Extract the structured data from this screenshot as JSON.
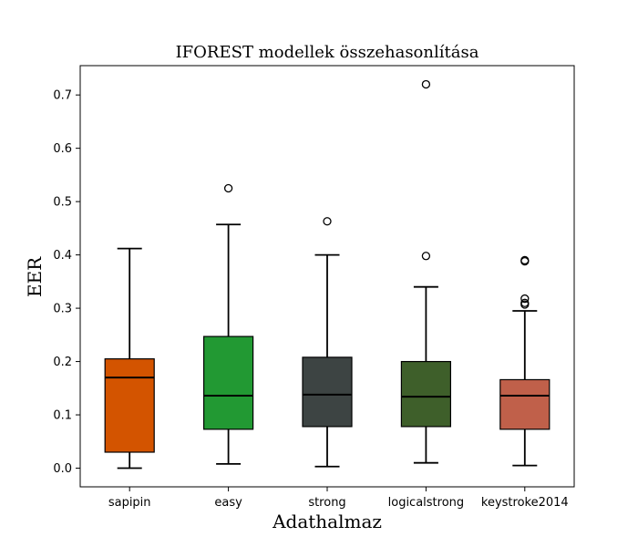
{
  "chart_data": {
    "type": "box",
    "title": "IFOREST modellek összehasonlítása",
    "xlabel": "Adathalmaz",
    "ylabel": "EER",
    "ylim": [
      -0.035,
      0.755
    ],
    "yticks": [
      0.0,
      0.1,
      0.2,
      0.3,
      0.4,
      0.5,
      0.6,
      0.7
    ],
    "ytick_labels": [
      "0.0",
      "0.1",
      "0.2",
      "0.3",
      "0.4",
      "0.5",
      "0.6",
      "0.7"
    ],
    "grid": false,
    "categories": [
      "sapipin",
      "easy",
      "strong",
      "logicalstrong",
      "keystroke2014"
    ],
    "boxes": [
      {
        "whislo": 0.0,
        "q1": 0.03,
        "med": 0.17,
        "q3": 0.205,
        "whishi": 0.412,
        "fliers": [],
        "color": "#d35400"
      },
      {
        "whislo": 0.008,
        "q1": 0.073,
        "med": 0.136,
        "q3": 0.247,
        "whishi": 0.457,
        "fliers": [
          0.525
        ],
        "color": "#229933"
      },
      {
        "whislo": 0.003,
        "q1": 0.078,
        "med": 0.138,
        "q3": 0.208,
        "whishi": 0.4,
        "fliers": [
          0.463
        ],
        "color": "#3d4443"
      },
      {
        "whislo": 0.01,
        "q1": 0.078,
        "med": 0.134,
        "q3": 0.2,
        "whishi": 0.34,
        "fliers": [
          0.398,
          0.72
        ],
        "color": "#3e5f2a"
      },
      {
        "whislo": 0.005,
        "q1": 0.073,
        "med": 0.136,
        "q3": 0.166,
        "whishi": 0.295,
        "fliers": [
          0.307,
          0.31,
          0.318,
          0.388,
          0.39
        ],
        "color": "#c0604a"
      }
    ]
  }
}
